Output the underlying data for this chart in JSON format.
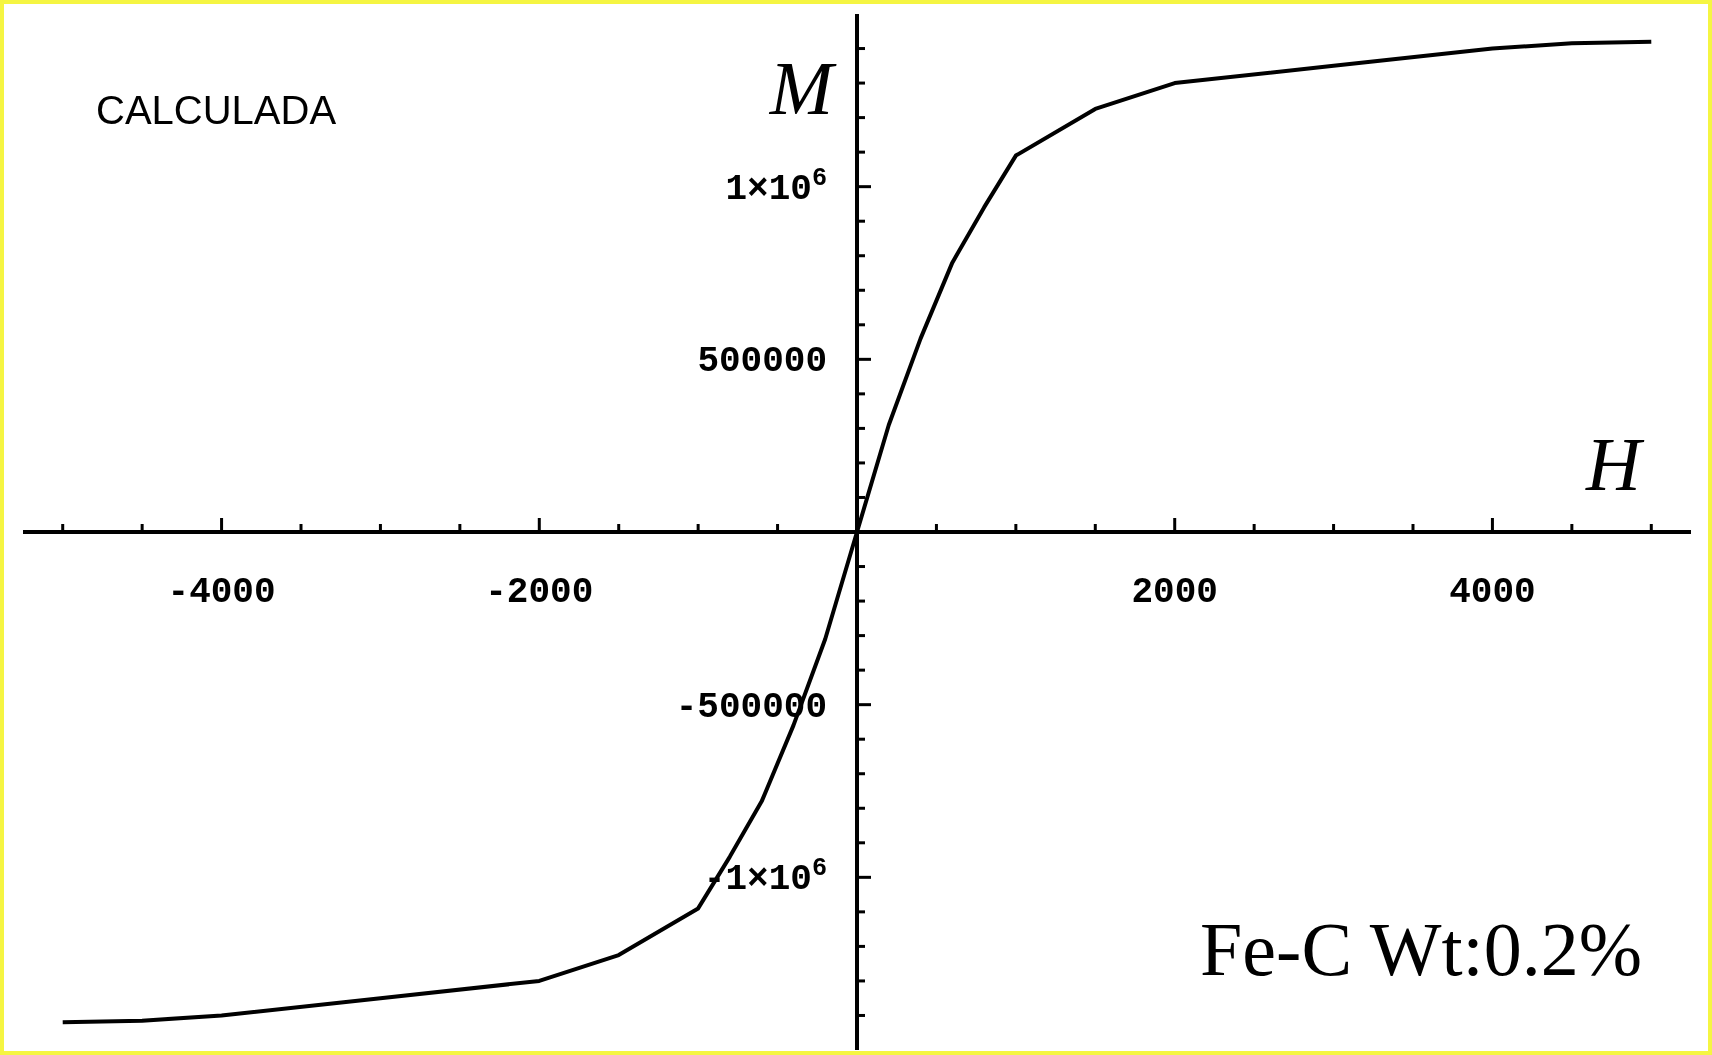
{
  "chart_data": {
    "type": "line",
    "xlabel": "H",
    "ylabel": "M",
    "annotations": [
      "CALCULADA",
      "Fe-C Wt:0.2%"
    ],
    "xlim": [
      -5250,
      5250
    ],
    "ylim": [
      -1500000,
      1500000
    ],
    "xticks": [
      {
        "value": -5000,
        "label": null
      },
      {
        "value": -4500,
        "label": null
      },
      -4000,
      {
        "value": -3500,
        "label": null
      },
      {
        "value": -3000,
        "label": null
      },
      {
        "value": -2500,
        "label": null
      },
      -2000,
      {
        "value": -1500,
        "label": null
      },
      {
        "value": -1000,
        "label": null
      },
      {
        "value": -500,
        "label": null
      },
      {
        "value": 0,
        "label": null
      },
      {
        "value": 500,
        "label": null
      },
      {
        "value": 1000,
        "label": null
      },
      {
        "value": 1500,
        "label": null
      },
      2000,
      {
        "value": 2500,
        "label": null
      },
      {
        "value": 3000,
        "label": null
      },
      {
        "value": 3500,
        "label": null
      },
      4000,
      {
        "value": 4500,
        "label": null
      },
      {
        "value": 5000,
        "label": null
      }
    ],
    "yticks": [
      {
        "value": -1400000,
        "label": null
      },
      {
        "value": -1300000,
        "label": null
      },
      {
        "value": -1200000,
        "label": null
      },
      {
        "value": -1100000,
        "label": null
      },
      {
        "value": -1000000,
        "label": "-1×10$^{6}$"
      },
      {
        "value": -900000,
        "label": null
      },
      {
        "value": -800000,
        "label": null
      },
      {
        "value": -700000,
        "label": null
      },
      {
        "value": -600000,
        "label": null
      },
      -500000,
      {
        "value": -400000,
        "label": null
      },
      {
        "value": -300000,
        "label": null
      },
      {
        "value": -200000,
        "label": null
      },
      {
        "value": -100000,
        "label": null
      },
      {
        "value": 0,
        "label": null
      },
      {
        "value": 100000,
        "label": null
      },
      {
        "value": 200000,
        "label": null
      },
      {
        "value": 300000,
        "label": null
      },
      {
        "value": 400000,
        "label": null
      },
      500000,
      {
        "value": 600000,
        "label": null
      },
      {
        "value": 700000,
        "label": null
      },
      {
        "value": 800000,
        "label": null
      },
      {
        "value": 900000,
        "label": null
      },
      {
        "value": 1000000,
        "label": "1×10$^{6}$"
      },
      {
        "value": 1100000,
        "label": null
      },
      {
        "value": 1200000,
        "label": null
      },
      {
        "value": 1300000,
        "label": null
      },
      {
        "value": 1400000,
        "label": null
      }
    ],
    "marker": "none",
    "line_style": "solid",
    "series": [
      {
        "color": "#000000",
        "x": [
          -5000,
          -4500,
          -4000,
          -3000,
          -2000,
          -1500,
          -1000,
          -800,
          -600,
          -400,
          -200,
          0,
          200,
          400,
          600,
          800,
          1000,
          1500,
          2000,
          3000,
          4000,
          4500,
          5000
        ],
        "values": [
          -1420000,
          -1415000,
          -1400000,
          -1350000,
          -1300000,
          -1225000,
          -1090000,
          -940000,
          -780000,
          -560000,
          -310000,
          0,
          310000,
          560000,
          780000,
          940000,
          1090000,
          1225000,
          1300000,
          1350000,
          1400000,
          1415000,
          1420000
        ]
      }
    ]
  }
}
